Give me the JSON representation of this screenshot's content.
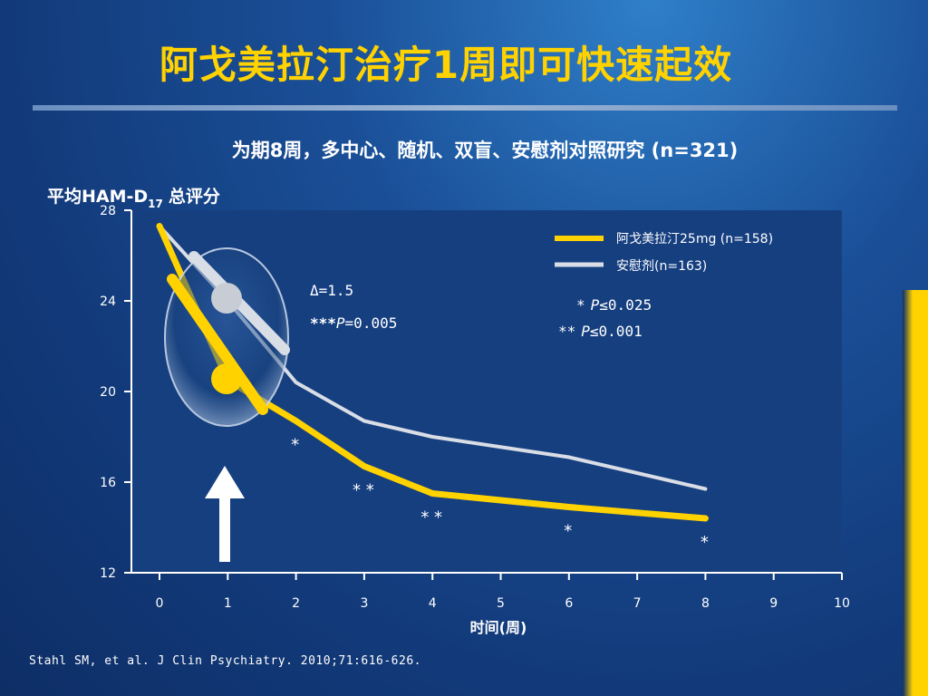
{
  "slide": {
    "title": "阿戈美拉汀治疗1周即可快速起效",
    "subtitle": "为期8周，多中心、随机、双盲、安慰剂对照研究 (n=321)",
    "ylabel_main": "平均HAM-D",
    "ylabel_sub": "17",
    "ylabel_tail": "总评分",
    "citation": "Stahl SM, et al. J Clin Psychiatry. 2010;71:616-626."
  },
  "colors": {
    "accent": "#ffd200",
    "agomelatine": "#ffd200",
    "placebo": "#d9dde6",
    "plot_bg": "#123a7a"
  },
  "chart_data": {
    "type": "line",
    "xlabel": "时间(周)",
    "xlim": [
      0,
      10
    ],
    "ylim": [
      12,
      28
    ],
    "xticks": [
      0,
      1,
      2,
      3,
      4,
      5,
      6,
      7,
      8,
      9,
      10
    ],
    "yticks": [
      12,
      16,
      20,
      24,
      28
    ],
    "series": [
      {
        "name": "阿戈美拉汀25mg (n=158)",
        "color": "#ffd200",
        "x": [
          0,
          1,
          2,
          3,
          4,
          6,
          8
        ],
        "values": [
          27.3,
          20.5,
          18.7,
          16.7,
          15.5,
          14.9,
          14.4
        ]
      },
      {
        "name": "安慰剂(n=163)",
        "color": "#d9dde6",
        "x": [
          0,
          1,
          2,
          3,
          4,
          6,
          8
        ],
        "values": [
          27.3,
          24.0,
          20.4,
          18.7,
          18.0,
          17.1,
          15.7
        ]
      }
    ],
    "significance_marks": [
      {
        "x": 2,
        "label": "*"
      },
      {
        "x": 3,
        "label": "**"
      },
      {
        "x": 4,
        "label": "**"
      },
      {
        "x": 6,
        "label": "*"
      },
      {
        "x": 8,
        "label": "*"
      }
    ],
    "annotations": {
      "delta": "Δ=1.5",
      "p_value_prefix": "***",
      "p_value_italic": "P",
      "p_value_tail": "=0.005",
      "footnote_1_stars": "*",
      "footnote_1_italic": "P",
      "footnote_1_tail": "≤0.025",
      "footnote_2_stars": "**",
      "footnote_2_italic": "P",
      "footnote_2_tail": "≤0.001"
    },
    "legend_position": "top-right"
  }
}
